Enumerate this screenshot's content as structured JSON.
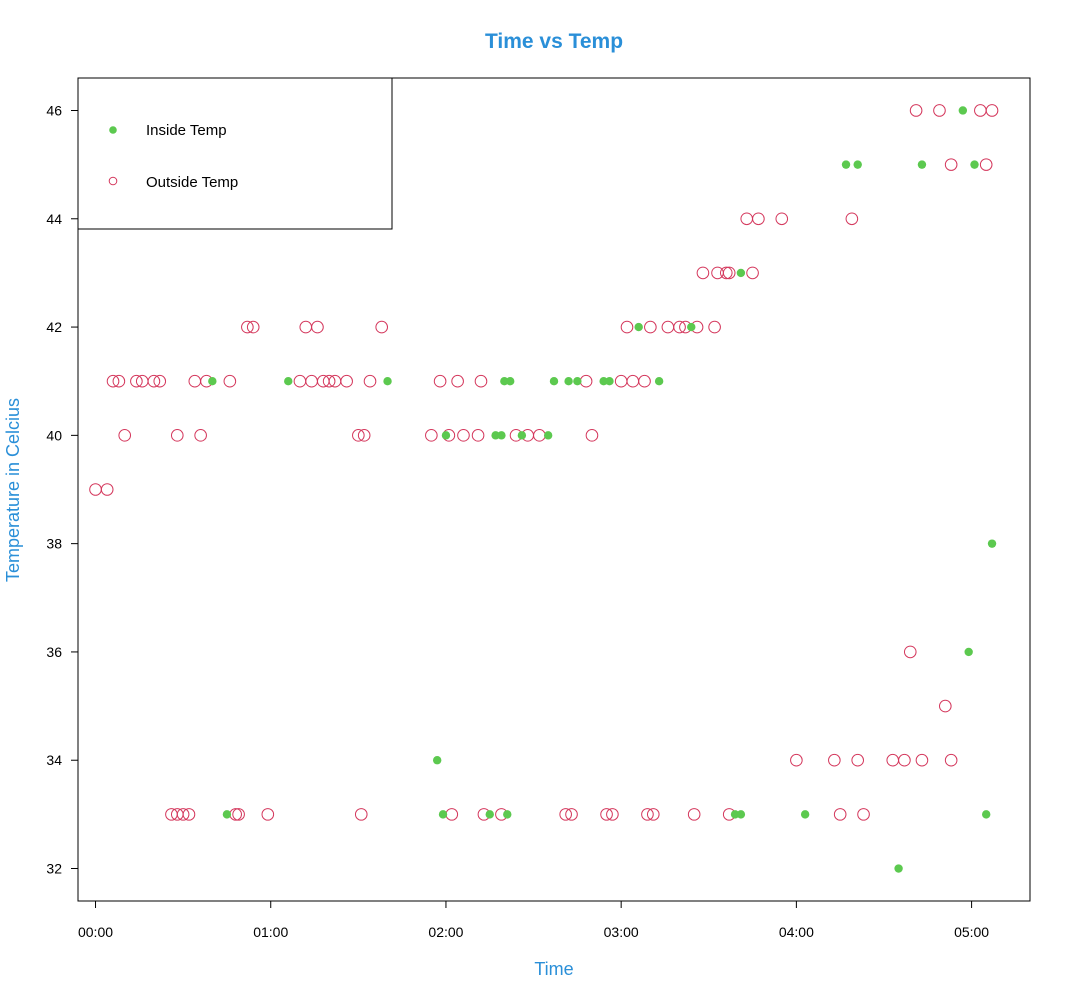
{
  "chart_data": {
    "type": "scatter",
    "title": "Time vs Temp",
    "xlabel": "Time",
    "ylabel": "Temperature in Celcius",
    "x_unit": "HH:MM",
    "xlim": [
      "-00:06",
      "05:20"
    ],
    "ylim": [
      31.4,
      46.6
    ],
    "x_ticks": [
      "00:00",
      "01:00",
      "02:00",
      "03:00",
      "04:00",
      "05:00"
    ],
    "y_ticks": [
      32,
      34,
      36,
      38,
      40,
      42,
      44,
      46
    ],
    "grid": false,
    "legend_position": "top-left",
    "colors": {
      "title": "#2a8fd8",
      "axis_title": "#2a8fd8",
      "inside": "#5cc94f",
      "outside": "#d4375c"
    },
    "series": [
      {
        "name": "Inside Temp",
        "marker": "filled-circle",
        "color": "#5cc94f",
        "points": [
          [
            "00:40",
            41
          ],
          [
            "00:45",
            33
          ],
          [
            "01:06",
            41
          ],
          [
            "01:40",
            41
          ],
          [
            "01:57",
            34
          ],
          [
            "01:59",
            33
          ],
          [
            "02:00",
            40
          ],
          [
            "02:15",
            33
          ],
          [
            "02:17",
            40
          ],
          [
            "02:19",
            40
          ],
          [
            "02:20",
            41
          ],
          [
            "02:21",
            33
          ],
          [
            "02:22",
            41
          ],
          [
            "02:26",
            40
          ],
          [
            "02:35",
            40
          ],
          [
            "02:37",
            41
          ],
          [
            "02:42",
            41
          ],
          [
            "02:45",
            41
          ],
          [
            "02:54",
            41
          ],
          [
            "02:56",
            41
          ],
          [
            "03:06",
            42
          ],
          [
            "03:13",
            41
          ],
          [
            "03:24",
            42
          ],
          [
            "03:39",
            33
          ],
          [
            "03:41",
            33
          ],
          [
            "03:41",
            43
          ],
          [
            "04:03",
            33
          ],
          [
            "04:17",
            45
          ],
          [
            "04:21",
            45
          ],
          [
            "04:35",
            32
          ],
          [
            "04:43",
            45
          ],
          [
            "04:57",
            46
          ],
          [
            "04:59",
            36
          ],
          [
            "05:01",
            45
          ],
          [
            "05:05",
            33
          ],
          [
            "05:07",
            38
          ]
        ]
      },
      {
        "name": "Outside Temp",
        "marker": "open-circle",
        "color": "#d4375c",
        "points": [
          [
            "00:00",
            39
          ],
          [
            "00:04",
            39
          ],
          [
            "00:06",
            41
          ],
          [
            "00:08",
            41
          ],
          [
            "00:10",
            40
          ],
          [
            "00:14",
            41
          ],
          [
            "00:16",
            41
          ],
          [
            "00:20",
            41
          ],
          [
            "00:22",
            41
          ],
          [
            "00:26",
            33
          ],
          [
            "00:28",
            40
          ],
          [
            "00:28",
            33
          ],
          [
            "00:30",
            33
          ],
          [
            "00:32",
            33
          ],
          [
            "00:34",
            41
          ],
          [
            "00:36",
            40
          ],
          [
            "00:38",
            41
          ],
          [
            "00:46",
            41
          ],
          [
            "00:48",
            33
          ],
          [
            "00:49",
            33
          ],
          [
            "00:52",
            42
          ],
          [
            "00:54",
            42
          ],
          [
            "00:59",
            33
          ],
          [
            "01:10",
            41
          ],
          [
            "01:12",
            42
          ],
          [
            "01:14",
            41
          ],
          [
            "01:16",
            42
          ],
          [
            "01:18",
            41
          ],
          [
            "01:20",
            41
          ],
          [
            "01:22",
            41
          ],
          [
            "01:26",
            41
          ],
          [
            "01:30",
            40
          ],
          [
            "01:31",
            33
          ],
          [
            "01:32",
            40
          ],
          [
            "01:34",
            41
          ],
          [
            "01:38",
            42
          ],
          [
            "01:55",
            40
          ],
          [
            "01:58",
            41
          ],
          [
            "02:01",
            40
          ],
          [
            "02:02",
            33
          ],
          [
            "02:04",
            41
          ],
          [
            "02:06",
            40
          ],
          [
            "02:11",
            40
          ],
          [
            "02:12",
            41
          ],
          [
            "02:13",
            33
          ],
          [
            "02:19",
            33
          ],
          [
            "02:24",
            40
          ],
          [
            "02:28",
            40
          ],
          [
            "02:32",
            40
          ],
          [
            "02:41",
            33
          ],
          [
            "02:43",
            33
          ],
          [
            "02:48",
            41
          ],
          [
            "02:50",
            40
          ],
          [
            "02:55",
            33
          ],
          [
            "02:57",
            33
          ],
          [
            "03:00",
            41
          ],
          [
            "03:02",
            42
          ],
          [
            "03:04",
            41
          ],
          [
            "03:08",
            41
          ],
          [
            "03:09",
            33
          ],
          [
            "03:10",
            42
          ],
          [
            "03:11",
            33
          ],
          [
            "03:16",
            42
          ],
          [
            "03:20",
            42
          ],
          [
            "03:22",
            42
          ],
          [
            "03:25",
            33
          ],
          [
            "03:26",
            42
          ],
          [
            "03:28",
            43
          ],
          [
            "03:32",
            42
          ],
          [
            "03:33",
            43
          ],
          [
            "03:36",
            43
          ],
          [
            "03:37",
            43
          ],
          [
            "03:37",
            33
          ],
          [
            "03:43",
            44
          ],
          [
            "03:45",
            43
          ],
          [
            "03:47",
            44
          ],
          [
            "03:55",
            44
          ],
          [
            "04:00",
            34
          ],
          [
            "04:13",
            34
          ],
          [
            "04:15",
            33
          ],
          [
            "04:19",
            44
          ],
          [
            "04:21",
            34
          ],
          [
            "04:23",
            33
          ],
          [
            "04:33",
            34
          ],
          [
            "04:37",
            34
          ],
          [
            "04:39",
            36
          ],
          [
            "04:41",
            46
          ],
          [
            "04:43",
            34
          ],
          [
            "04:49",
            46
          ],
          [
            "04:51",
            35
          ],
          [
            "04:53",
            45
          ],
          [
            "04:53",
            34
          ],
          [
            "05:03",
            46
          ],
          [
            "05:05",
            45
          ],
          [
            "05:07",
            46
          ]
        ]
      }
    ]
  }
}
